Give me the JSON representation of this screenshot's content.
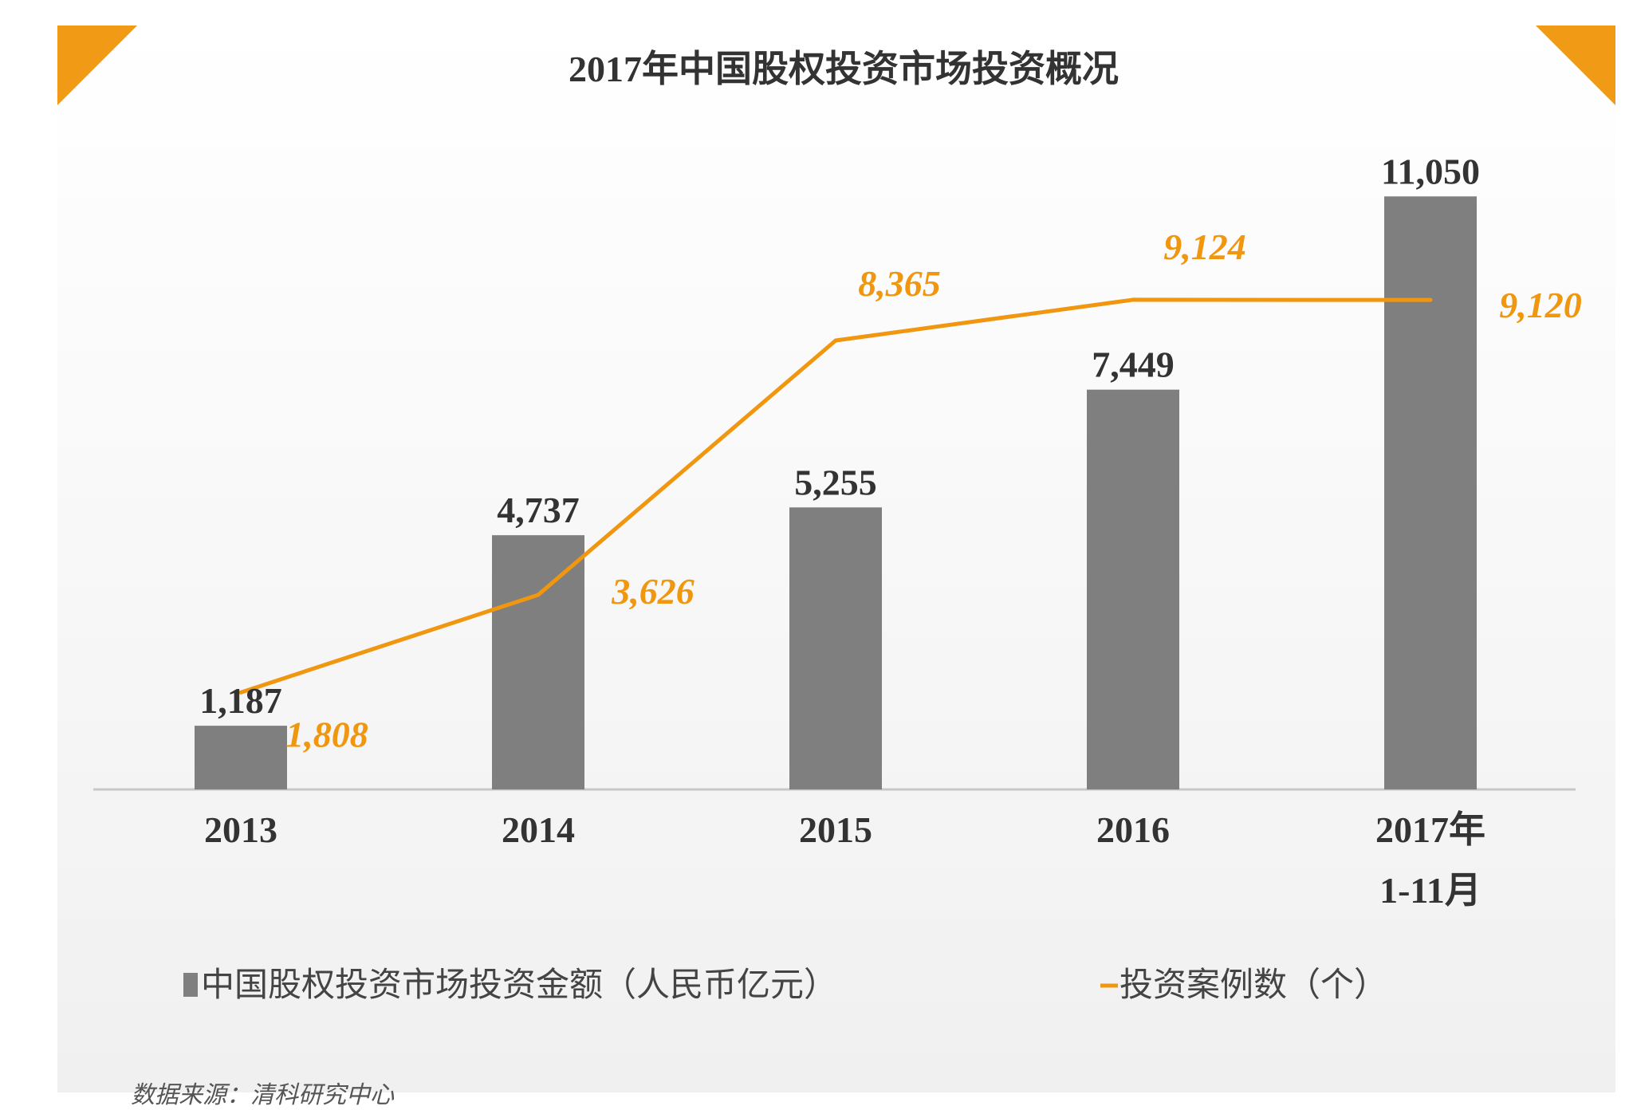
{
  "chart_data": {
    "type": "bar",
    "title": "2017年中国股权投资市场投资概况",
    "categories": [
      "2013",
      "2014",
      "2015",
      "2016",
      "2017年\n1-11月"
    ],
    "series": [
      {
        "name": "中国股权投资市场投资金额（人民币亿元）",
        "type": "bar",
        "values": [
          1187,
          4737,
          5255,
          7449,
          11050
        ],
        "labels": [
          "1,187",
          "4,737",
          "5,255",
          "7,449",
          "11,050"
        ]
      },
      {
        "name": "投资案例数（个）",
        "type": "line",
        "values": [
          1808,
          3626,
          8365,
          9124,
          9120
        ],
        "labels": [
          "1,808",
          "3,626",
          "8,365",
          "9,124",
          "9,120"
        ]
      }
    ],
    "ylim_bar": [
      0,
      11500
    ],
    "ylim_line": [
      0,
      11500
    ],
    "grid": false,
    "legend_position": "bottom",
    "colors": {
      "bar": "#7f7f7f",
      "line": "#f0960f",
      "accent": "#f09a16",
      "axis": "#c8c8c8"
    }
  },
  "source": "数据来源：清科研究中心"
}
